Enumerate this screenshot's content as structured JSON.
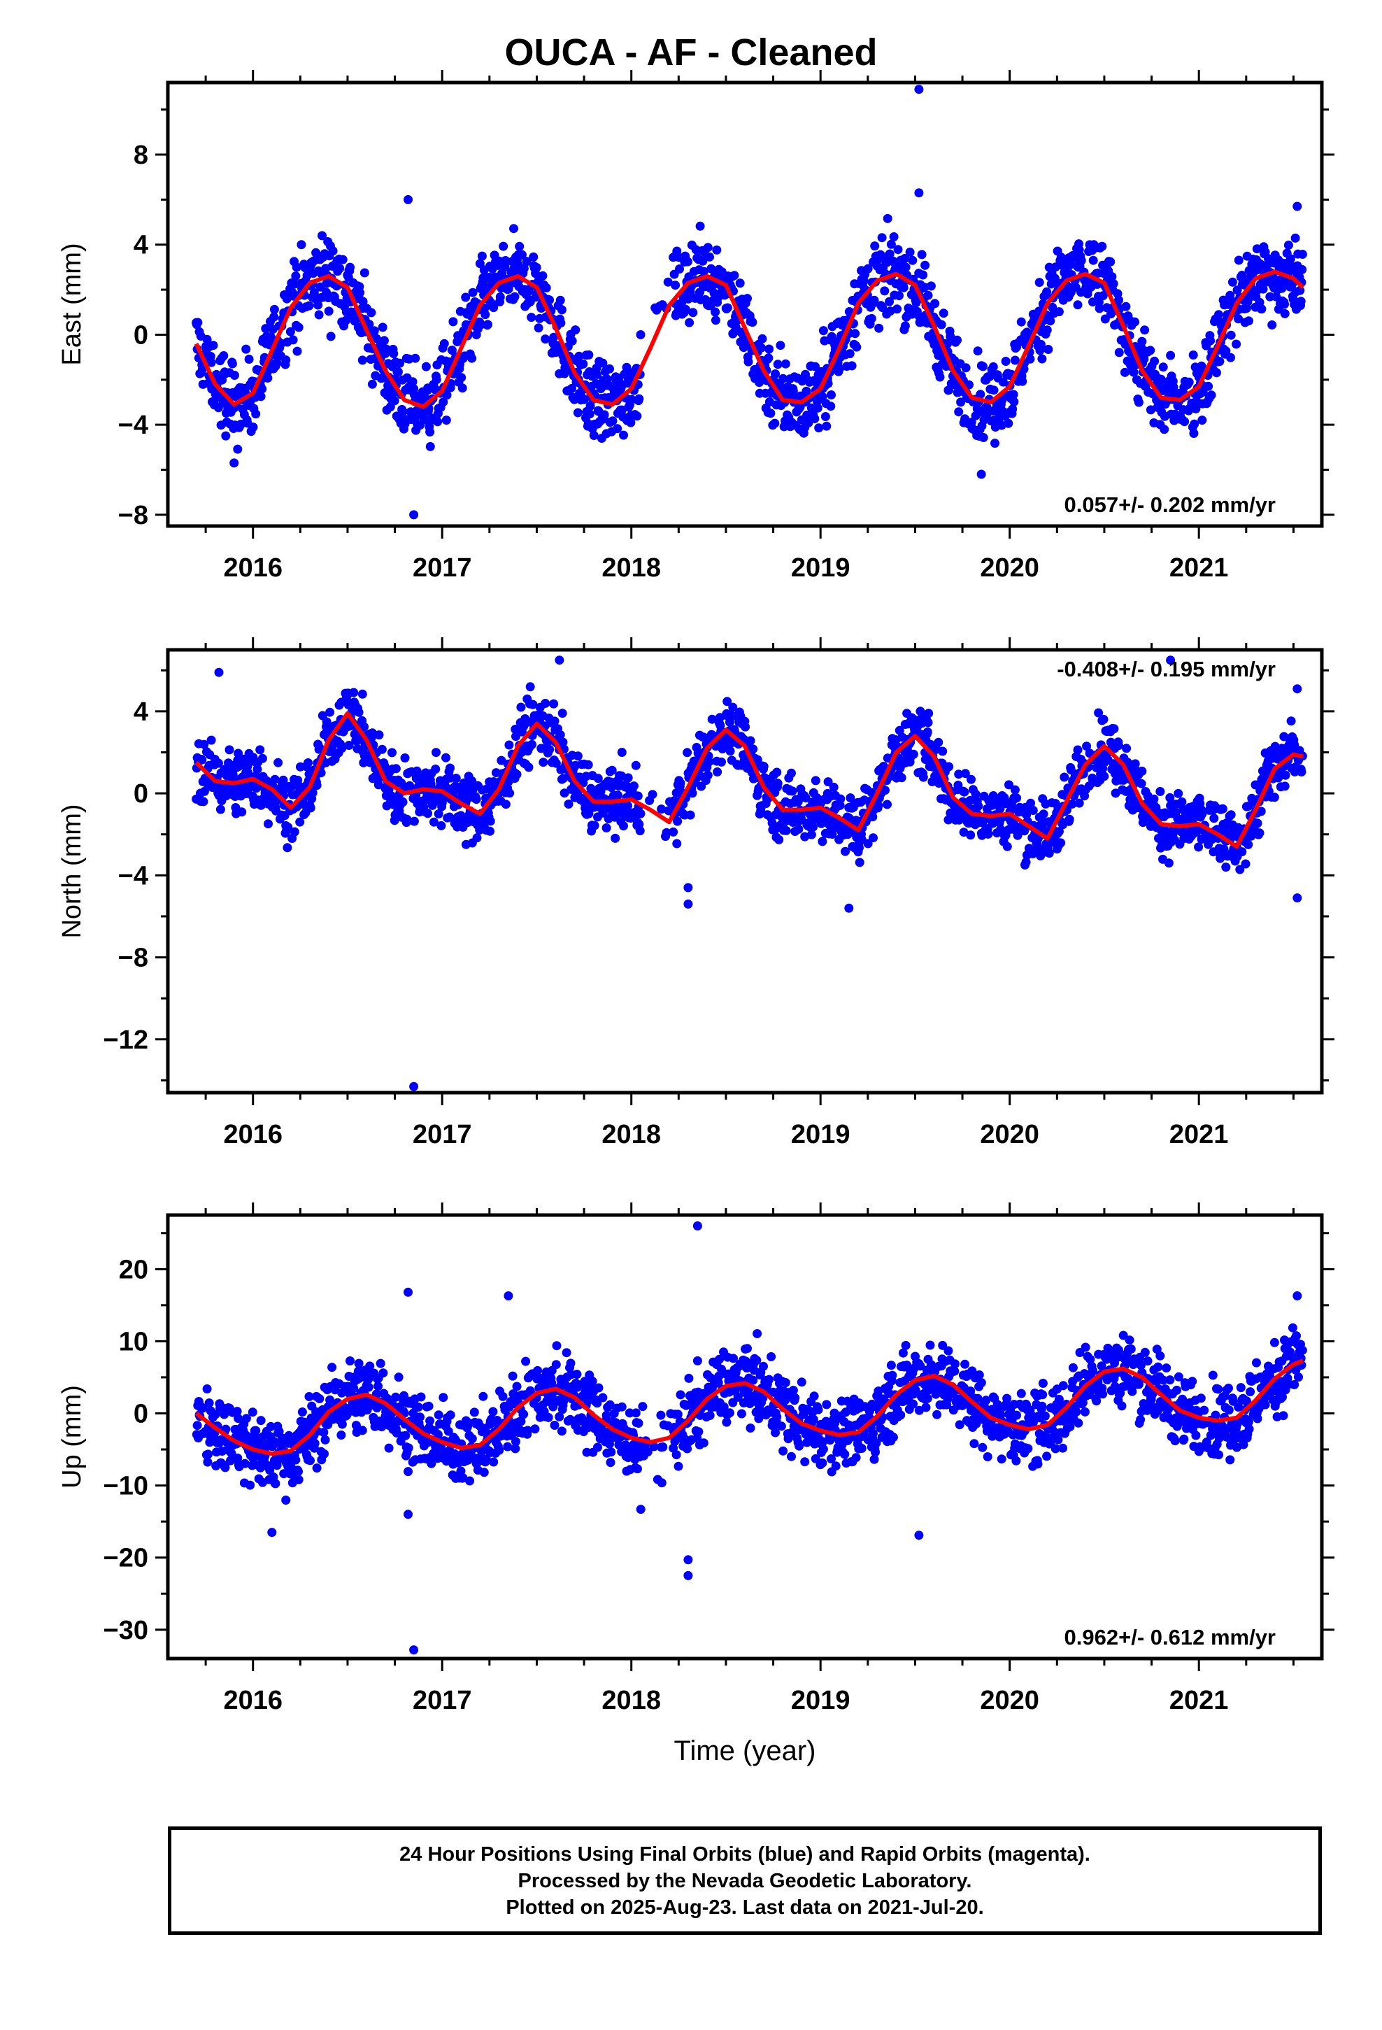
{
  "title": "OUCA  - AF - Cleaned",
  "footer": {
    "lines": [
      "24 Hour Positions Using Final Orbits (blue) and Rapid Orbits (magenta).",
      "Processed by the Nevada Geodetic Laboratory.",
      "Plotted on 2025-Aug-23. Last data on 2021-Jul-20."
    ]
  },
  "colors": {
    "points": "#0000ff",
    "fit": "#ff0000",
    "frame": "#000000"
  },
  "chart_data": [
    {
      "type": "scatter",
      "ylabel": "East (mm)",
      "xlabel": "",
      "xlim": [
        2015.55,
        2021.65
      ],
      "ylim": [
        -8.5,
        11.2
      ],
      "xticks": [
        2016,
        2017,
        2018,
        2019,
        2020,
        2021
      ],
      "yticks": [
        -8,
        -4,
        0,
        4,
        8
      ],
      "annotation": "0.057+/- 0.202 mm/yr",
      "annotation_position": "bottom-right",
      "series": [
        {
          "kind": "fit",
          "x": [
            2015.7,
            2015.8,
            2015.9,
            2016.0,
            2016.1,
            2016.2,
            2016.3,
            2016.4,
            2016.5,
            2016.6,
            2016.7,
            2016.8,
            2016.9,
            2017.0,
            2017.1,
            2017.2,
            2017.3,
            2017.4,
            2017.5,
            2017.6,
            2017.7,
            2017.8,
            2017.9,
            2018.0,
            2018.1,
            2018.2,
            2018.3,
            2018.4,
            2018.5,
            2018.6,
            2018.7,
            2018.8,
            2018.9,
            2019.0,
            2019.1,
            2019.2,
            2019.3,
            2019.4,
            2019.5,
            2019.6,
            2019.7,
            2019.8,
            2019.9,
            2020.0,
            2020.1,
            2020.2,
            2020.3,
            2020.4,
            2020.5,
            2020.6,
            2020.7,
            2020.8,
            2020.9,
            2021.0,
            2021.1,
            2021.2,
            2021.3,
            2021.4,
            2021.5,
            2021.55
          ],
          "y": [
            -0.4,
            -2.2,
            -3.1,
            -2.6,
            -0.7,
            1.2,
            2.3,
            2.6,
            2.1,
            0.2,
            -1.6,
            -2.9,
            -3.2,
            -2.5,
            -0.6,
            1.3,
            2.3,
            2.6,
            2.1,
            0.3,
            -1.7,
            -2.9,
            -3.1,
            -2.4,
            -0.6,
            1.3,
            2.3,
            2.6,
            2.2,
            0.3,
            -1.6,
            -2.9,
            -3.0,
            -2.4,
            -0.6,
            1.4,
            2.4,
            2.7,
            2.2,
            0.4,
            -1.6,
            -2.8,
            -3.0,
            -2.3,
            -0.5,
            1.4,
            2.4,
            2.7,
            2.3,
            0.4,
            -1.6,
            -2.8,
            -2.9,
            -2.3,
            -0.5,
            1.4,
            2.5,
            2.8,
            2.5,
            2.1
          ]
        },
        {
          "kind": "outliers",
          "x": [
            2016.82,
            2016.85,
            2019.52,
            2019.52,
            2021.52,
            2015.9,
            2019.85
          ],
          "y": [
            6.0,
            -8.0,
            10.9,
            6.3,
            5.7,
            -5.7,
            -6.2
          ]
        }
      ]
    },
    {
      "type": "scatter",
      "ylabel": "North (mm)",
      "xlabel": "",
      "xlim": [
        2015.55,
        2021.65
      ],
      "ylim": [
        -14.6,
        7.0
      ],
      "xticks": [
        2016,
        2017,
        2018,
        2019,
        2020,
        2021
      ],
      "yticks": [
        -12,
        -8,
        -4,
        0,
        4
      ],
      "annotation": "-0.408+/- 0.195 mm/yr",
      "annotation_position": "top-right",
      "series": [
        {
          "kind": "fit",
          "x": [
            2015.7,
            2015.8,
            2015.9,
            2016.0,
            2016.1,
            2016.2,
            2016.3,
            2016.4,
            2016.5,
            2016.6,
            2016.7,
            2016.8,
            2016.9,
            2017.0,
            2017.1,
            2017.2,
            2017.3,
            2017.4,
            2017.5,
            2017.6,
            2017.7,
            2017.8,
            2017.9,
            2018.0,
            2018.1,
            2018.2,
            2018.3,
            2018.4,
            2018.5,
            2018.6,
            2018.7,
            2018.8,
            2018.9,
            2019.0,
            2019.1,
            2019.2,
            2019.3,
            2019.4,
            2019.5,
            2019.6,
            2019.7,
            2019.8,
            2019.9,
            2020.0,
            2020.1,
            2020.2,
            2020.3,
            2020.4,
            2020.5,
            2020.6,
            2020.7,
            2020.8,
            2020.9,
            2021.0,
            2021.1,
            2021.2,
            2021.3,
            2021.4,
            2021.5,
            2021.55
          ],
          "y": [
            1.5,
            0.6,
            0.5,
            0.7,
            0.2,
            -0.7,
            0.3,
            2.6,
            3.9,
            2.6,
            0.6,
            0.0,
            0.2,
            0.1,
            -0.5,
            -1.0,
            0.2,
            2.3,
            3.4,
            2.5,
            0.6,
            -0.4,
            -0.4,
            -0.3,
            -0.8,
            -1.4,
            0.3,
            2.2,
            3.1,
            2.3,
            0.3,
            -0.8,
            -0.8,
            -0.7,
            -1.2,
            -1.8,
            0.0,
            2.0,
            2.8,
            1.8,
            -0.2,
            -1.0,
            -1.1,
            -1.0,
            -1.6,
            -2.2,
            -0.4,
            1.4,
            2.3,
            1.4,
            -0.5,
            -1.5,
            -1.6,
            -1.5,
            -2.0,
            -2.6,
            -0.8,
            1.2,
            1.9,
            1.8
          ]
        },
        {
          "kind": "outliers",
          "x": [
            2015.82,
            2016.85,
            2017.62,
            2018.3,
            2018.3,
            2020.85,
            2021.52,
            2021.52,
            2019.15
          ],
          "y": [
            5.9,
            -14.3,
            6.5,
            -4.6,
            -5.4,
            6.5,
            5.1,
            -5.1,
            -5.6
          ]
        }
      ]
    },
    {
      "type": "scatter",
      "ylabel": "Up (mm)",
      "xlabel": "Time (year)",
      "xlim": [
        2015.55,
        2021.65
      ],
      "ylim": [
        -34.0,
        27.5
      ],
      "xticks": [
        2016,
        2017,
        2018,
        2019,
        2020,
        2021
      ],
      "yticks": [
        -30,
        -20,
        -10,
        0,
        10,
        20
      ],
      "annotation": "0.962+/- 0.612 mm/yr",
      "annotation_position": "bottom-right",
      "series": [
        {
          "kind": "fit",
          "x": [
            2015.7,
            2015.8,
            2015.9,
            2016.0,
            2016.1,
            2016.2,
            2016.3,
            2016.4,
            2016.5,
            2016.6,
            2016.7,
            2016.8,
            2016.9,
            2017.0,
            2017.1,
            2017.2,
            2017.3,
            2017.4,
            2017.5,
            2017.6,
            2017.7,
            2017.8,
            2017.9,
            2018.0,
            2018.1,
            2018.2,
            2018.3,
            2018.4,
            2018.5,
            2018.6,
            2018.7,
            2018.8,
            2018.9,
            2019.0,
            2019.1,
            2019.2,
            2019.3,
            2019.4,
            2019.5,
            2019.6,
            2019.7,
            2019.8,
            2019.9,
            2020.0,
            2020.1,
            2020.2,
            2020.3,
            2020.4,
            2020.5,
            2020.6,
            2020.7,
            2020.8,
            2020.9,
            2021.0,
            2021.1,
            2021.2,
            2021.3,
            2021.4,
            2021.5,
            2021.55
          ],
          "y": [
            0.0,
            -2.0,
            -3.8,
            -5.0,
            -5.6,
            -5.2,
            -3.0,
            0.2,
            2.0,
            2.6,
            1.4,
            -0.8,
            -2.8,
            -4.0,
            -4.8,
            -4.4,
            -2.2,
            0.8,
            2.8,
            3.4,
            2.2,
            -0.2,
            -2.2,
            -3.4,
            -4.0,
            -3.4,
            -1.0,
            2.0,
            3.8,
            4.2,
            3.0,
            0.6,
            -1.4,
            -2.4,
            -3.0,
            -2.6,
            -0.4,
            2.6,
            4.6,
            5.2,
            4.0,
            1.6,
            -0.6,
            -1.6,
            -2.2,
            -1.6,
            0.8,
            3.8,
            5.8,
            6.2,
            5.0,
            2.6,
            0.4,
            -0.6,
            -1.0,
            -0.6,
            1.8,
            4.8,
            6.8,
            7.3
          ]
        },
        {
          "kind": "outliers",
          "x": [
            2016.82,
            2016.82,
            2016.85,
            2018.3,
            2018.3,
            2018.35,
            2019.52,
            2016.1,
            2018.05,
            2017.35,
            2021.52
          ],
          "y": [
            16.8,
            -14.0,
            -32.8,
            -20.3,
            -22.5,
            26.0,
            -16.9,
            -16.5,
            -13.3,
            16.3,
            16.3
          ]
        }
      ]
    }
  ]
}
